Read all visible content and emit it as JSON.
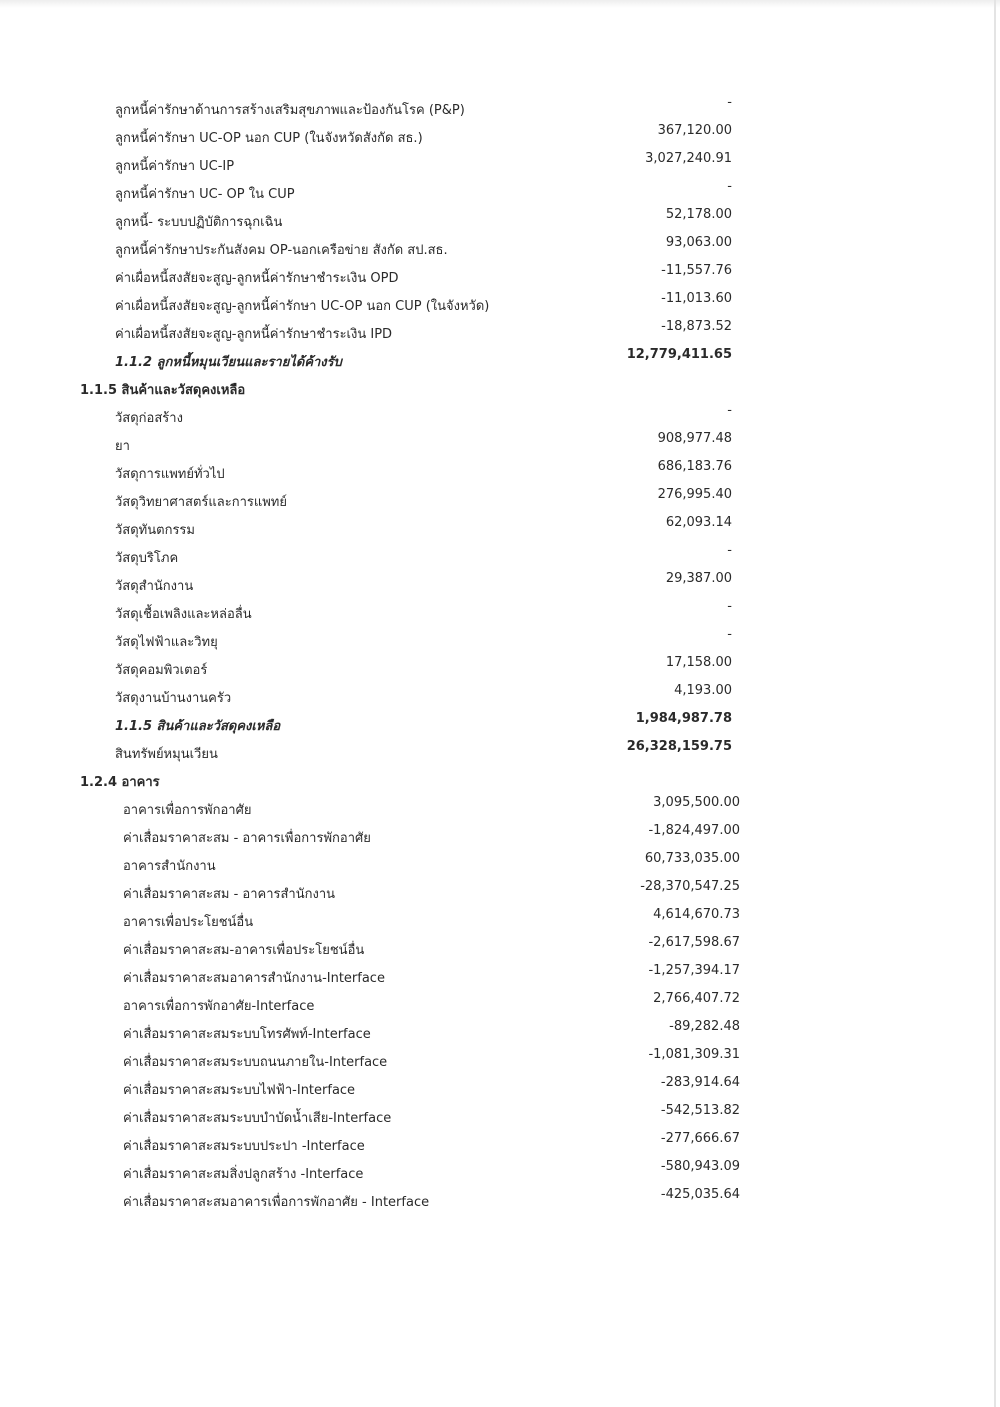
{
  "rows": [
    {
      "label": "ลูกหนี้ค่ารักษาด้านการสร้างเสริมสุขภาพและป้องกันโรค     (P&P)",
      "value": "-",
      "type": "item"
    },
    {
      "label": "ลูกหนี้ค่ารักษา UC-OP นอก CUP (ในจังหวัดสังกัด สธ.)",
      "value": "367,120.00",
      "type": "item"
    },
    {
      "label": "ลูกหนี้ค่ารักษา UC-IP",
      "value": "3,027,240.91",
      "type": "item"
    },
    {
      "label": "ลูกหนี้ค่ารักษา UC- OP ใน CUP",
      "value": "-",
      "type": "item"
    },
    {
      "label": "ลูกหนี้- ระบบปฏิบัติการฉุกเฉิน",
      "value": "52,178.00",
      "type": "item"
    },
    {
      "label": "ลูกหนี้ค่ารักษาประกันสังคม OP-นอกเครือข่าย สังกัด สป.สธ.",
      "value": "93,063.00",
      "type": "item"
    },
    {
      "label": "ค่าเผื่อหนี้สงสัยจะสูญ-ลูกหนี้ค่ารักษาชำระเงิน OPD",
      "value": "-11,557.76",
      "type": "item"
    },
    {
      "label": "ค่าเผื่อหนี้สงสัยจะสูญ-ลูกหนี้ค่ารักษา UC-OP นอก CUP (ในจังหวัด)",
      "value": "-11,013.60",
      "type": "item"
    },
    {
      "label": "ค่าเผื่อหนี้สงสัยจะสูญ-ลูกหนี้ค่ารักษาชำระเงิน IPD",
      "value": "-18,873.52",
      "type": "item"
    },
    {
      "label": "1.1.2 ลูกหนี้หมุนเวียนและรายได้ค้างรับ",
      "value": "12,779,411.65",
      "type": "sub"
    },
    {
      "label": "1.1.5 สินค้าและวัสดุคงเหลือ",
      "value": "",
      "type": "h"
    },
    {
      "label": "วัสดุก่อสร้าง",
      "value": "-",
      "type": "item"
    },
    {
      "label": "ยา",
      "value": "908,977.48",
      "type": "item"
    },
    {
      "label": "วัสดุการแพทย์ทั่วไป",
      "value": "686,183.76",
      "type": "item"
    },
    {
      "label": "วัสดุวิทยาศาสตร์และการแพทย์",
      "value": "276,995.40",
      "type": "item"
    },
    {
      "label": "วัสดุทันตกรรม",
      "value": "62,093.14",
      "type": "item"
    },
    {
      "label": "วัสดุบริโภค",
      "value": "-",
      "type": "item"
    },
    {
      "label": "วัสดุสำนักงาน",
      "value": "29,387.00",
      "type": "item"
    },
    {
      "label": "วัสดุเชื้อเพลิงและหล่อลื่น",
      "value": "-",
      "type": "item"
    },
    {
      "label": "วัสดุไฟฟ้าและวิทยุ",
      "value": "-",
      "type": "item"
    },
    {
      "label": "วัสดุคอมพิวเตอร์",
      "value": "17,158.00",
      "type": "item"
    },
    {
      "label": "วัสดุงานบ้านงานครัว",
      "value": "4,193.00",
      "type": "item"
    },
    {
      "label": "1.1.5 สินค้าและวัสดุคงเหลือ",
      "value": "1,984,987.78",
      "type": "sub"
    },
    {
      "label": "สินทรัพย์หมุนเวียน",
      "value": "26,328,159.75",
      "type": "total"
    },
    {
      "label": "1.2.4 อาคาร",
      "value": "",
      "type": "h"
    },
    {
      "label": "อาคารเพื่อการพักอาศัย",
      "value": "3,095,500.00",
      "type": "b2"
    },
    {
      "label": "ค่าเสื่อมราคาสะสม - อาคารเพื่อการพักอาศัย",
      "value": "-1,824,497.00",
      "type": "b2"
    },
    {
      "label": "อาคารสำนักงาน",
      "value": "60,733,035.00",
      "type": "b2"
    },
    {
      "label": "ค่าเสื่อมราคาสะสม - อาคารสำนักงาน",
      "value": "-28,370,547.25",
      "type": "b2"
    },
    {
      "label": "อาคารเพื่อประโยชน์อื่น",
      "value": "4,614,670.73",
      "type": "b2"
    },
    {
      "label": "ค่าเสื่อมราคาสะสม-อาคารเพื่อประโยชน์อื่น",
      "value": "-2,617,598.67",
      "type": "b2"
    },
    {
      "label": "ค่าเสื่อมราคาสะสมอาคารสำนักงาน-Interface",
      "value": "-1,257,394.17",
      "type": "b2"
    },
    {
      "label": "อาคารเพื่อการพักอาศัย-Interface",
      "value": "2,766,407.72",
      "type": "b2"
    },
    {
      "label": "ค่าเสื่อมราคาสะสมระบบโทรศัพท์-Interface",
      "value": "-89,282.48",
      "type": "b2"
    },
    {
      "label": "ค่าเสื่อมราคาสะสมระบบถนนภายใน-Interface",
      "value": "-1,081,309.31",
      "type": "b2"
    },
    {
      "label": "ค่าเสื่อมราคาสะสมระบบไฟฟ้า-Interface",
      "value": "-283,914.64",
      "type": "b2"
    },
    {
      "label": "ค่าเสื่อมราคาสะสมระบบบำบัดน้ำเสีย-Interface",
      "value": "-542,513.82",
      "type": "b2"
    },
    {
      "label": "ค่าเสื่อมราคาสะสมระบบประปา -Interface",
      "value": "-277,666.67",
      "type": "b2"
    },
    {
      "label": "ค่าเสื่อมราคาสะสมสิ่งปลูกสร้าง -Interface",
      "value": "-580,943.09",
      "type": "b2"
    },
    {
      "label": "ค่าเสื่อมราคาสะสมอาคารเพื่อการพักอาศัย - Interface",
      "value": "-425,035.64",
      "type": "b2"
    }
  ]
}
